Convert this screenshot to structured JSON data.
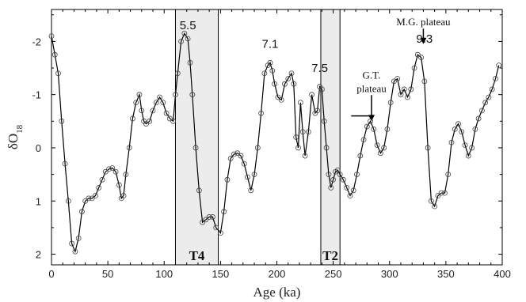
{
  "chart_data": {
    "type": "line",
    "xlabel": "Age (ka)",
    "ylabel_main": "δO",
    "ylabel_sub": "18",
    "xlim": [
      0,
      400
    ],
    "ylim": [
      2.2,
      -2.6
    ],
    "y_inverted": true,
    "grid": false,
    "legend": "none",
    "line_color": "#000000",
    "marker": "open-circle",
    "x_ticks": [
      "0",
      "50",
      "100",
      "150",
      "200",
      "250",
      "300",
      "350",
      "400"
    ],
    "y_ticks": [
      "-2",
      "-1",
      "0",
      "1",
      "2"
    ],
    "x_tick_values": [
      0,
      50,
      100,
      150,
      200,
      250,
      300,
      350,
      400
    ],
    "y_tick_values": [
      -2,
      -1,
      0,
      1,
      2
    ],
    "shaded_bands": [
      {
        "label": "T4",
        "x0": 110,
        "x1": 148,
        "color": "#ececec"
      },
      {
        "label": "T2",
        "x0": 239,
        "x1": 256,
        "color": "#ececec"
      }
    ],
    "peak_labels": [
      {
        "text": "5.5",
        "x": 121,
        "y": -2.05
      },
      {
        "text": "7.1",
        "x": 194,
        "y": -1.7
      },
      {
        "text": "7.5",
        "x": 238,
        "y": -1.25
      },
      {
        "text": "9.3",
        "x": 331,
        "y": -1.8
      }
    ],
    "annotations": [
      {
        "text": "M.G. plateau",
        "x": 330,
        "y": -2.3,
        "arrow_to": -1.95
      },
      {
        "text": "G.T.",
        "x": 284,
        "y": -1.3
      },
      {
        "text": "plateau",
        "x": 284,
        "y": -1.05,
        "arrow_to": -0.5
      },
      {
        "type": "hline",
        "x0": 266,
        "x1": 286,
        "y": -0.6
      }
    ],
    "series": [
      {
        "x": [
          0,
          3,
          6,
          9,
          12,
          15,
          18,
          21,
          24,
          27,
          30,
          33,
          36,
          39,
          42,
          45,
          48,
          51,
          54,
          57,
          60,
          62,
          64,
          66,
          69,
          72,
          75,
          78,
          80,
          82,
          84,
          87,
          90,
          93,
          96,
          99,
          102,
          105,
          108,
          110,
          112,
          115,
          118,
          121,
          123,
          125,
          128,
          131,
          134,
          137,
          140,
          143,
          146,
          150,
          153,
          156,
          159,
          162,
          165,
          168,
          171,
          174,
          177,
          180,
          183,
          186,
          189,
          192,
          194,
          196,
          198,
          201,
          204,
          207,
          210,
          213,
          215,
          217,
          219,
          221,
          223,
          225,
          228,
          231,
          234,
          236,
          238,
          240,
          242,
          244,
          246,
          248,
          250,
          252,
          254,
          256,
          259,
          262,
          265,
          268,
          271,
          274,
          277,
          280,
          283,
          286,
          289,
          292,
          295,
          298,
          301,
          304,
          307,
          310,
          313,
          316,
          319,
          322,
          325,
          328,
          331,
          334,
          337,
          340,
          343,
          346,
          349,
          352,
          355,
          358,
          361,
          364,
          367,
          370,
          373,
          376,
          379,
          382,
          385,
          388,
          391,
          394,
          397
        ],
        "y": [
          -2.1,
          -1.75,
          -1.4,
          -0.5,
          0.3,
          1.0,
          1.8,
          1.95,
          1.7,
          1.2,
          1.0,
          0.95,
          0.95,
          0.9,
          0.75,
          0.6,
          0.45,
          0.4,
          0.38,
          0.45,
          0.7,
          0.95,
          0.9,
          0.5,
          0.0,
          -0.55,
          -0.85,
          -1.0,
          -0.7,
          -0.5,
          -0.45,
          -0.5,
          -0.7,
          -0.85,
          -0.95,
          -0.85,
          -0.65,
          -0.55,
          -0.5,
          -1.0,
          -1.4,
          -2.0,
          -2.15,
          -2.05,
          -1.6,
          -1.0,
          0.0,
          0.8,
          1.4,
          1.35,
          1.3,
          1.3,
          1.5,
          1.6,
          1.2,
          0.6,
          0.2,
          0.12,
          0.1,
          0.15,
          0.3,
          0.55,
          0.8,
          0.5,
          0.0,
          -0.65,
          -1.4,
          -1.55,
          -1.6,
          -1.45,
          -1.2,
          -0.95,
          -0.9,
          -1.2,
          -1.3,
          -1.4,
          -1.2,
          -0.2,
          0.0,
          -0.85,
          -0.3,
          0.15,
          -0.3,
          -1.0,
          -0.65,
          -0.7,
          -1.15,
          -1.1,
          -0.5,
          0.0,
          0.5,
          0.75,
          0.6,
          0.45,
          0.42,
          0.5,
          0.6,
          0.75,
          0.9,
          0.8,
          0.5,
          0.15,
          -0.15,
          -0.4,
          -0.5,
          -0.35,
          -0.05,
          0.1,
          0.0,
          -0.35,
          -0.85,
          -1.25,
          -1.3,
          -1.0,
          -1.1,
          -0.95,
          -1.1,
          -1.5,
          -1.75,
          -1.7,
          -1.25,
          0.0,
          1.0,
          1.1,
          0.9,
          0.85,
          0.85,
          0.5,
          -0.1,
          -0.35,
          -0.45,
          -0.3,
          -0.05,
          0.15,
          0.0,
          -0.35,
          -0.55,
          -0.7,
          -0.85,
          -0.95,
          -1.1,
          -1.3,
          -1.55
        ]
      }
    ]
  }
}
